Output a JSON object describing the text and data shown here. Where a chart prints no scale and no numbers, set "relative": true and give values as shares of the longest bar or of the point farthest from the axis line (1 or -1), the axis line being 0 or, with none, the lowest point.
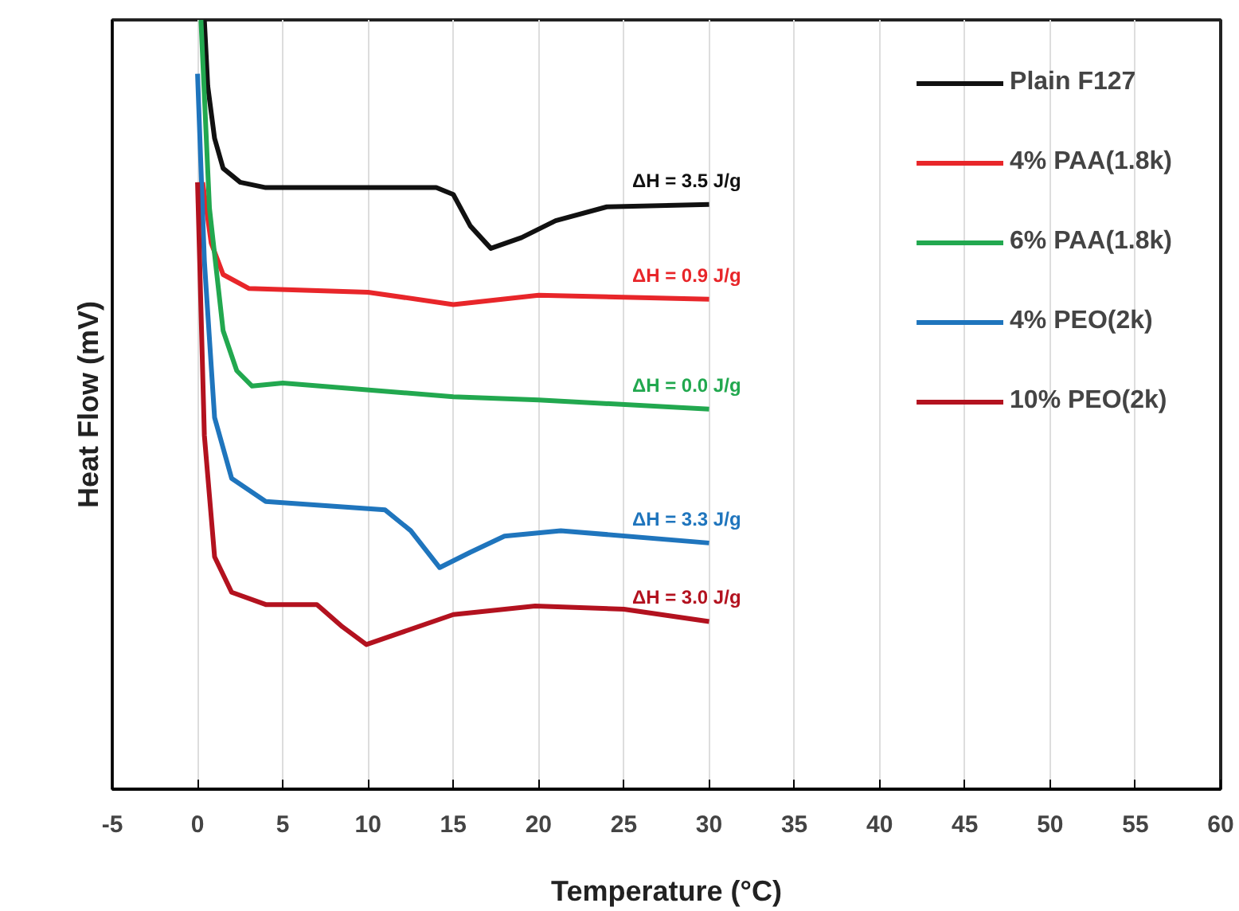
{
  "chart_data": {
    "type": "line",
    "relative": true,
    "xlabel": "Temperature (°C)",
    "ylabel": "Heat Flow (mV)",
    "xlim": [
      -5,
      60
    ],
    "xticks": [
      -5,
      0,
      5,
      10,
      15,
      20,
      25,
      30,
      35,
      40,
      45,
      50,
      55,
      60
    ],
    "grid": "x",
    "legend": "top right",
    "line_style": "solid",
    "marker": "none",
    "series": [
      {
        "name": "Plain F127",
        "color": "#111111",
        "x": [
          0.4,
          0.6,
          1,
          1.5,
          2.5,
          4,
          14,
          15,
          16,
          17.2,
          19,
          21,
          24,
          30
        ],
        "values": [
          1.0,
          0.914,
          0.846,
          0.807,
          0.789,
          0.782,
          0.782,
          0.773,
          0.732,
          0.703,
          0.717,
          0.739,
          0.757,
          0.76
        ]
      },
      {
        "name": "4% PAA(1.8k)",
        "color": "#e8262a",
        "x": [
          0.3,
          0.8,
          1.5,
          3,
          10,
          15,
          20,
          30
        ],
        "values": [
          0.789,
          0.71,
          0.669,
          0.651,
          0.646,
          0.63,
          0.642,
          0.637
        ]
      },
      {
        "name": "6% PAA(1.8k)",
        "color": "#22a84f",
        "x": [
          0.2,
          0.7,
          1.5,
          2.3,
          3.2,
          5,
          15,
          20,
          30
        ],
        "values": [
          1.0,
          0.755,
          0.596,
          0.544,
          0.524,
          0.528,
          0.51,
          0.506,
          0.494
        ]
      },
      {
        "name": "4% PEO(2k)",
        "color": "#1f75bd",
        "x": [
          0,
          0.4,
          1,
          2,
          4,
          11,
          12.5,
          14.2,
          16,
          18,
          21.3,
          30
        ],
        "values": [
          0.93,
          0.687,
          0.483,
          0.404,
          0.374,
          0.363,
          0.336,
          0.288,
          0.308,
          0.329,
          0.336,
          0.32
        ]
      },
      {
        "name": "10% PEO(2k)",
        "color": "#b3121f",
        "x": [
          0,
          0.4,
          1,
          2,
          4,
          7,
          8.5,
          9.9,
          12,
          15,
          19.8,
          25,
          30
        ],
        "values": [
          0.789,
          0.46,
          0.302,
          0.256,
          0.24,
          0.24,
          0.211,
          0.188,
          0.204,
          0.227,
          0.238,
          0.234,
          0.218
        ]
      }
    ],
    "annotations": [
      "ΔH = 3.5 J/g",
      "ΔH = 0.9 J/g",
      "ΔH = 0.0 J/g",
      "ΔH = 3.3 J/g",
      "ΔH = 3.0 J/g"
    ]
  }
}
